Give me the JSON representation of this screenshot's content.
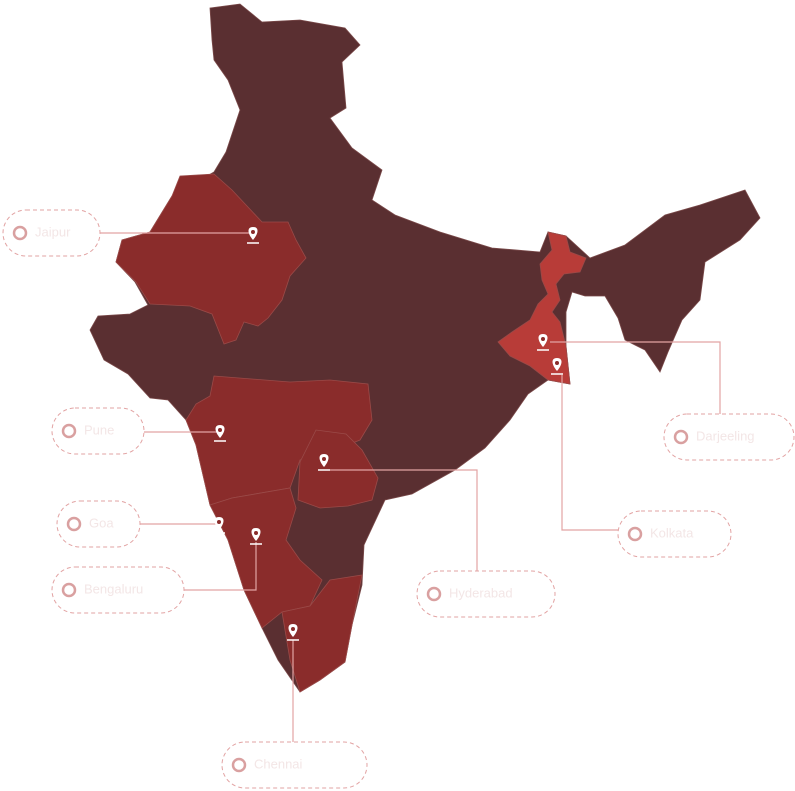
{
  "locations": [
    {
      "label": "Jaipur"
    },
    {
      "label": "Pune"
    },
    {
      "label": "Goa"
    },
    {
      "label": "Bengaluru"
    },
    {
      "label": "Chennai"
    },
    {
      "label": "Hyderabad"
    },
    {
      "label": "Kolkata"
    },
    {
      "label": "Darjeeling"
    }
  ]
}
